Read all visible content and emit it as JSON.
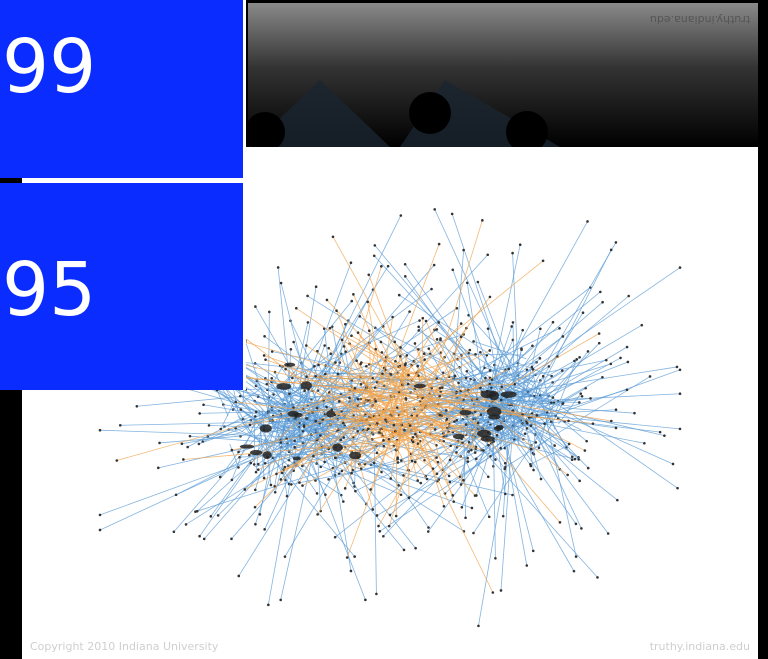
{
  "tiles": [
    "99",
    "95"
  ],
  "image": {
    "copyright": "Copyright 2010 Indiana University",
    "source": "truthy.indiana.edu"
  }
}
